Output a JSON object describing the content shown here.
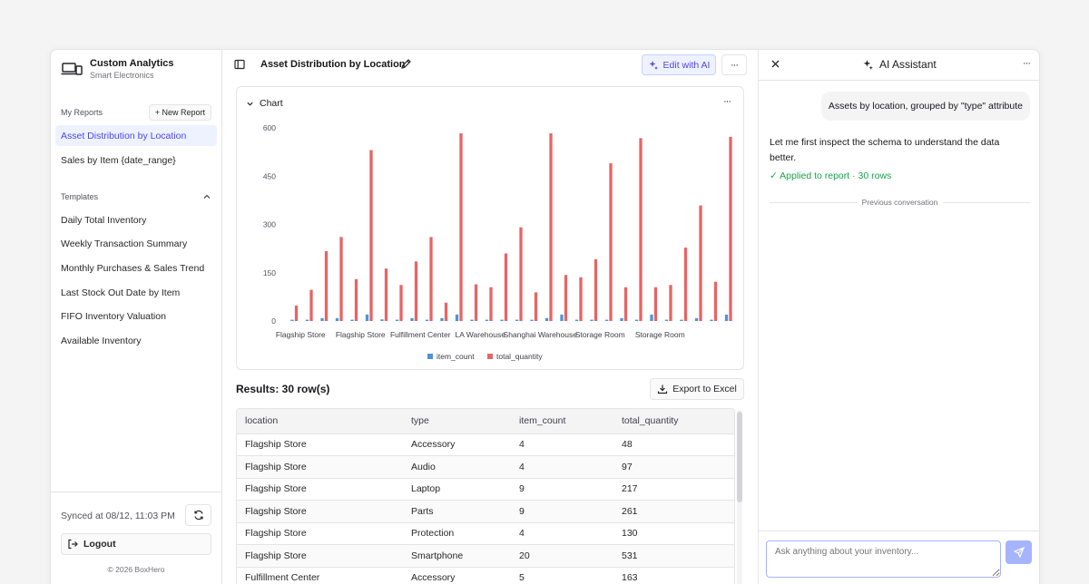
{
  "brand": {
    "title": "Custom Analytics",
    "subtitle": "Smart Electronics"
  },
  "sidebar": {
    "my_reports_label": "My Reports",
    "new_report_label": "+ New Report",
    "reports": [
      "Asset Distribution by Location",
      "Sales by Item {date_range}"
    ],
    "templates_label": "Templates",
    "templates": [
      "Daily Total Inventory",
      "Weekly Transaction Summary",
      "Monthly Purchases & Sales Trend",
      "Last Stock Out Date by Item",
      "FIFO Inventory Valuation",
      "Available Inventory"
    ],
    "synced": "Synced at 08/12, 11:03 PM",
    "logout": "Logout",
    "copyright": "© 2026 BoxHero"
  },
  "header": {
    "title": "Asset Distribution by Location",
    "edit_ai": "Edit with AI",
    "more": "···"
  },
  "chart_card": {
    "label": "Chart",
    "more": "···"
  },
  "chart_data": {
    "type": "bar",
    "ylim": [
      0,
      600
    ],
    "y_ticks": [
      0,
      150,
      300,
      450,
      600
    ],
    "x_tick_labels": [
      "Flagship Store",
      "Flagship Store",
      "Fulfillment Center",
      "LA Warehouse",
      "Shanghai Warehouse",
      "Storage Room",
      "Storage Room"
    ],
    "series": [
      {
        "name": "item_count",
        "color": "#4f93d9",
        "values": [
          4,
          4,
          9,
          9,
          4,
          20,
          5,
          4,
          9,
          4,
          9,
          20,
          4,
          4,
          4,
          4,
          4,
          9,
          20,
          4,
          4,
          4,
          9,
          4,
          20,
          4,
          4,
          9,
          4,
          20
        ]
      },
      {
        "name": "total_quantity",
        "color": "#e86464",
        "values": [
          48,
          97,
          217,
          261,
          130,
          531,
          163,
          112,
          185,
          261,
          57,
          583,
          114,
          105,
          210,
          291,
          89,
          583,
          143,
          136,
          192,
          490,
          105,
          568,
          105,
          112,
          228,
          359,
          122,
          572
        ]
      }
    ]
  },
  "results": {
    "title": "Results: 30 row(s)",
    "export_label": "Export to Excel",
    "columns": [
      "location",
      "type",
      "item_count",
      "total_quantity"
    ],
    "rows": [
      [
        "Flagship Store",
        "Accessory",
        "4",
        "48"
      ],
      [
        "Flagship Store",
        "Audio",
        "4",
        "97"
      ],
      [
        "Flagship Store",
        "Laptop",
        "9",
        "217"
      ],
      [
        "Flagship Store",
        "Parts",
        "9",
        "261"
      ],
      [
        "Flagship Store",
        "Protection",
        "4",
        "130"
      ],
      [
        "Flagship Store",
        "Smartphone",
        "20",
        "531"
      ],
      [
        "Fulfillment Center",
        "Accessory",
        "5",
        "163"
      ]
    ]
  },
  "assistant": {
    "title": "AI Assistant",
    "more": "···",
    "user_message": "Assets by location, grouped by \"type\" attribute",
    "assistant_message": "Let me first inspect the schema to understand the data better.",
    "applied": "✓ Applied to report · 30 rows",
    "divider": "Previous conversation",
    "input_placeholder": "Ask anything about your inventory..."
  }
}
